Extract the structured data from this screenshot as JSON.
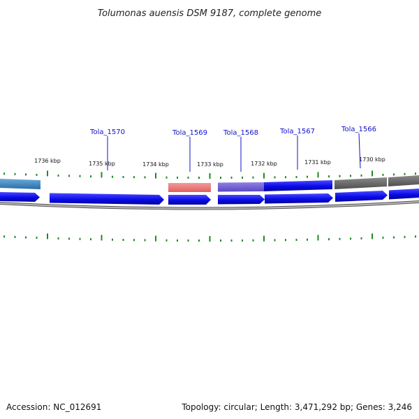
{
  "title": "Tolumonas auensis DSM 9187, complete genome",
  "accession_text": "Accession: NC_012691",
  "summary_text": "Topology: circular; Length: 3,471,292 bp; Genes: 3,246",
  "scale_labels": [
    "1736 kbp",
    "1735 kbp",
    "1734 kbp",
    "1733 kbp",
    "1732 kbp",
    "1731 kbp",
    "1730 kbp"
  ],
  "gene_labels": [
    "Tola_1570",
    "Tola_1569",
    "Tola_1568",
    "Tola_1567",
    "Tola_1566"
  ],
  "colors": {
    "cds": "#1212e8",
    "outer_light": "#3a86c4",
    "outer_red": "#ef7b7b",
    "outer_purple": "#7460d6",
    "outer_gray": "#6a6a6a",
    "backbone": "#8a8a8a",
    "ticks": "#1f8a1f",
    "label_line": "#1010c8"
  }
}
